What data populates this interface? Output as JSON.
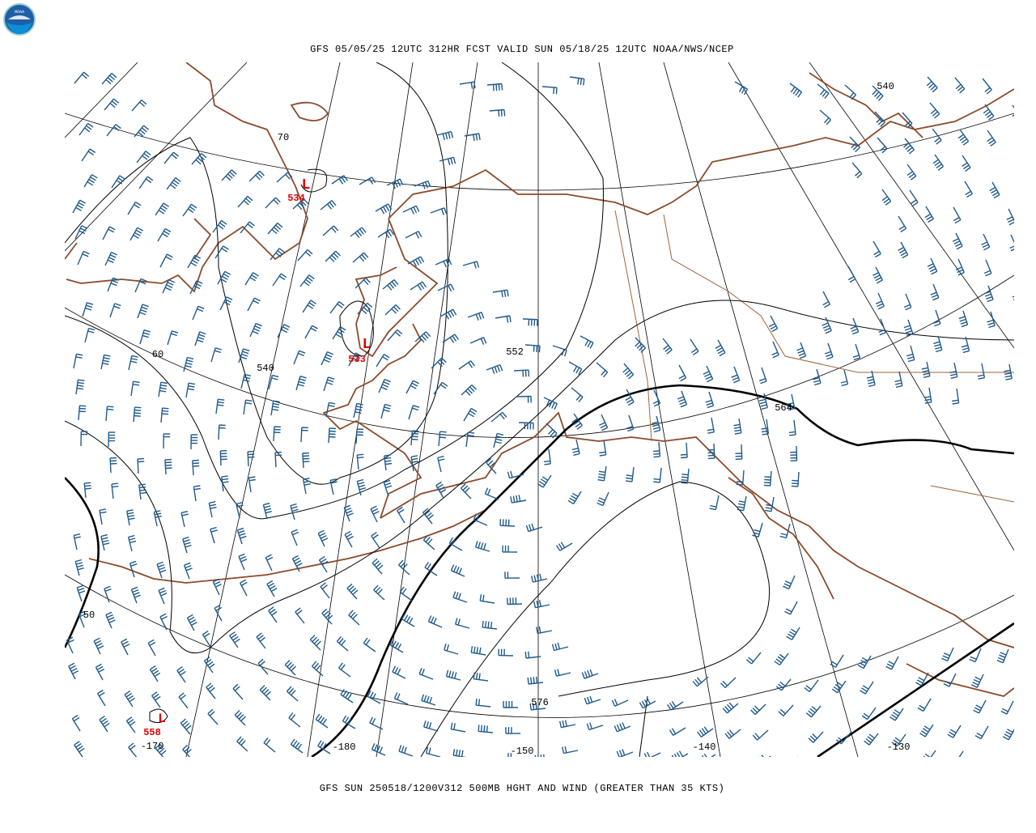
{
  "logo": {
    "text": "NOAA"
  },
  "header": {
    "title": "GFS 05/05/25 12UTC 312HR FCST VALID SUN 05/18/25 12UTC NOAA/NWS/NCEP"
  },
  "footer": {
    "caption": "GFS SUN 250518/1200V312 500MB HGHT AND WIND (GREATER THAN 35 KTS)"
  },
  "contour_labels": [
    "540",
    "552",
    "540",
    "564",
    "576"
  ],
  "lows": [
    {
      "symbol": "L",
      "value": "534"
    },
    {
      "symbol": "L",
      "value": "533"
    },
    {
      "symbol": "L",
      "value": "558"
    }
  ],
  "latitude_labels": [
    "70",
    "60",
    "50"
  ],
  "longitude_labels": [
    "-170",
    "-180",
    "-150",
    "-140",
    "-130"
  ]
}
